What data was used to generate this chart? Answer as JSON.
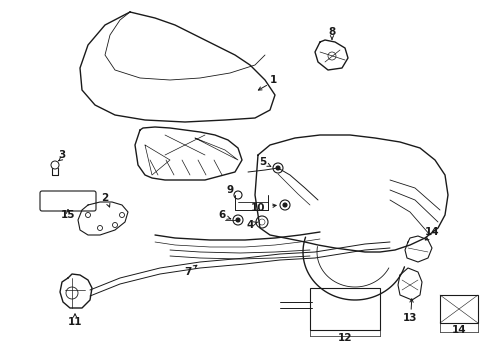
{
  "background_color": "#ffffff",
  "line_color": "#1a1a1a",
  "fig_width": 4.89,
  "fig_height": 3.6,
  "dpi": 100,
  "label_fontsize": 7.0,
  "label_fontweight": "bold"
}
